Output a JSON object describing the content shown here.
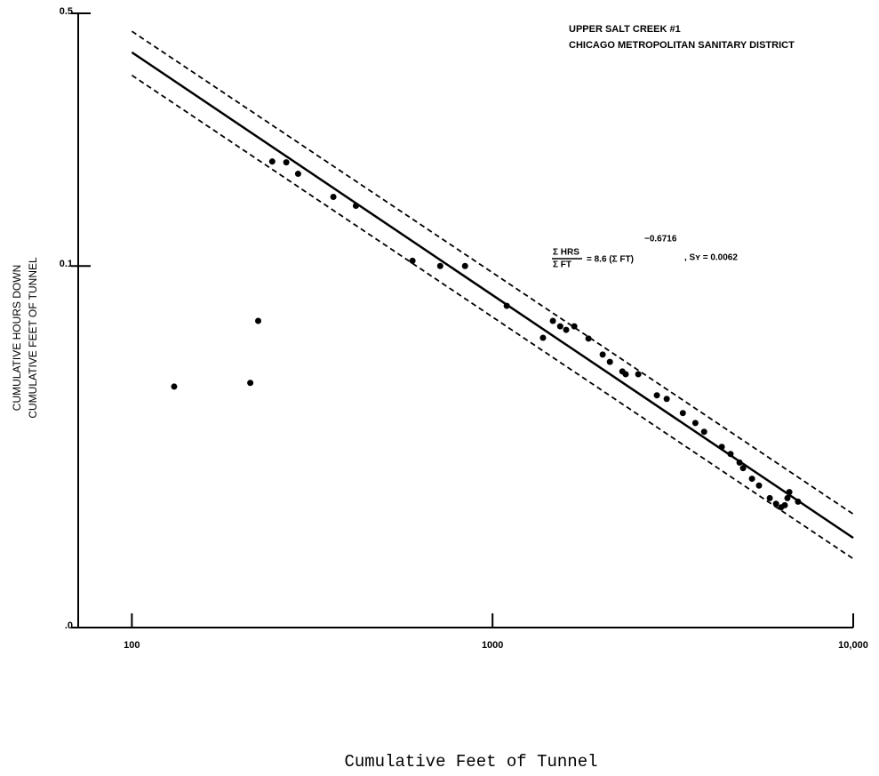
{
  "chart_data": {
    "type": "scatter",
    "title": [
      "UPPER SALT CREEK #1",
      "CHICAGO METROPOLITAN SANITARY DISTRICT"
    ],
    "ylabel": [
      "CUMULATIVE HOURS DOWN",
      "CUMULATIVE FEET OF TUNNEL"
    ],
    "xlabel": "Cumulative Feet of Tunnel",
    "annotation": {
      "numerator": "Σ HRS",
      "denominator": "Σ FT",
      "equation": "= 8.6 (Σ FT)",
      "exponent": "−0.6716",
      "stat": ", Sʏ = 0.0062"
    },
    "xscale": "log",
    "yscale": "log",
    "xlim": [
      71,
      10000
    ],
    "ylim": [
      0.01,
      0.5
    ],
    "xticks": [
      100,
      1000,
      {
        "value": 10000,
        "label": "10,000"
      }
    ],
    "yticks": [
      {
        "value": 0.01,
        "label": ".0"
      },
      0.1,
      0.5
    ],
    "color": "#000000",
    "x": [
      131,
      213,
      224,
      245,
      268,
      289,
      362,
      418,
      600,
      716,
      839,
      1095,
      1380,
      1470,
      1540,
      1600,
      1685,
      1845,
      2020,
      2115,
      2290,
      2340,
      2535,
      2855,
      3040,
      3370,
      3650,
      3860,
      4320,
      4570,
      4840,
      4950,
      5240,
      5480,
      5870,
      6110,
      6310,
      6460,
      6570,
      6650,
      7030
    ],
    "values": [
      0.0464,
      0.0475,
      0.0705,
      0.1946,
      0.1936,
      0.1799,
      0.1553,
      0.1468,
      0.1034,
      0.1,
      0.1,
      0.0776,
      0.0633,
      0.0705,
      0.0681,
      0.0666,
      0.0681,
      0.063,
      0.0569,
      0.0543,
      0.0511,
      0.0502,
      0.0502,
      0.0439,
      0.0429,
      0.0392,
      0.0368,
      0.0348,
      0.0316,
      0.0302,
      0.0286,
      0.0276,
      0.0258,
      0.0247,
      0.0228,
      0.022,
      0.0215,
      0.0218,
      0.0228,
      0.0237,
      0.0223
    ],
    "lines": [
      {
        "style": "dashed",
        "x": [
          100,
          10000
        ],
        "y": [
          0.446,
          0.0206
        ]
      },
      {
        "style": "solid",
        "x": [
          100,
          10000
        ],
        "y": [
          0.39,
          0.0177
        ]
      },
      {
        "style": "dashed",
        "x": [
          100,
          10000
        ],
        "y": [
          0.337,
          0.0155
        ]
      }
    ]
  }
}
